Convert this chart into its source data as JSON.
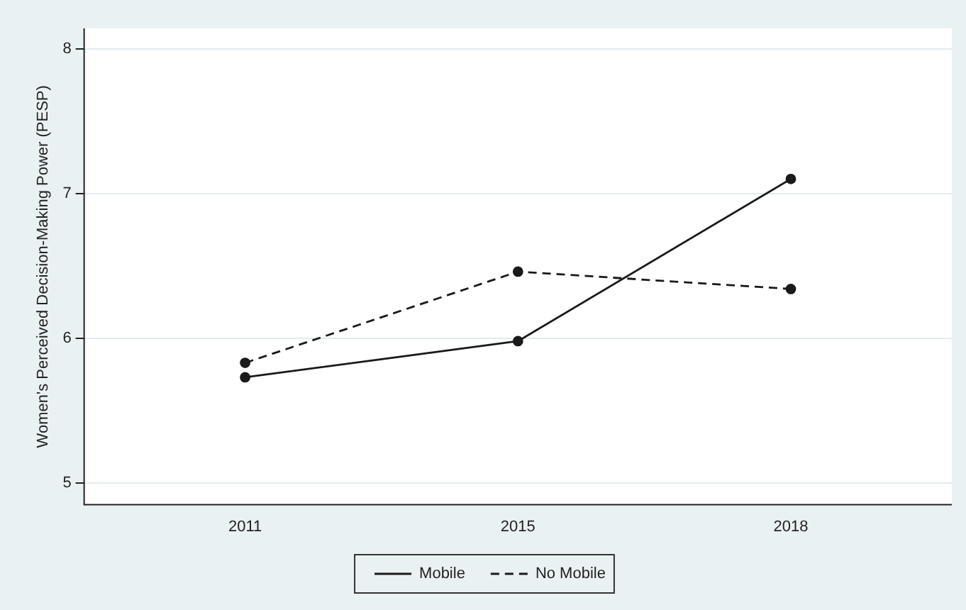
{
  "chart_data": {
    "type": "line",
    "ylabel": "Women's Perceived Decision-Making Power (PESP)",
    "categories": [
      "2011",
      "2015",
      "2018"
    ],
    "series": [
      {
        "name": "Mobile",
        "color": "#1a1a1a",
        "values": [
          5.73,
          5.98,
          7.1
        ],
        "line_style": "solid"
      },
      {
        "name": "No Mobile",
        "color": "#1a1a1a",
        "values": [
          5.83,
          6.46,
          6.34
        ],
        "line_style": "dashed"
      }
    ],
    "ylim": [
      4.85,
      8.14
    ],
    "yticks": [
      5,
      6,
      7,
      8
    ],
    "grid": "y",
    "legend": "bottom",
    "marker": "circle"
  }
}
